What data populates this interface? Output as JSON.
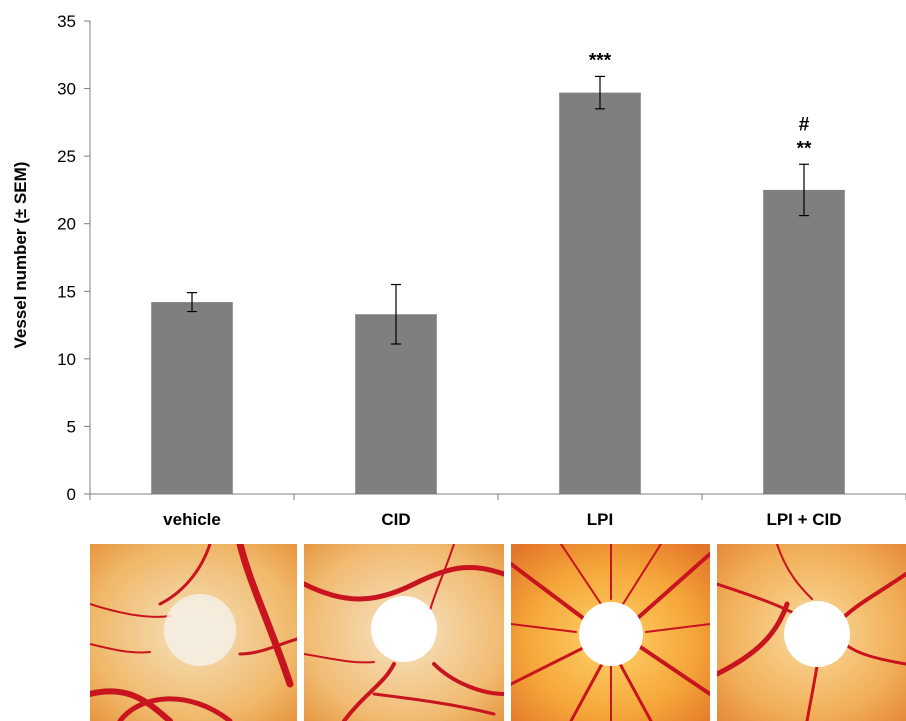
{
  "chart_data": {
    "type": "bar",
    "title": "",
    "xlabel": "",
    "ylabel": "Vessel number (± SEM)",
    "ylim": [
      0,
      35
    ],
    "yticks": [
      0,
      5,
      10,
      15,
      20,
      25,
      30,
      35
    ],
    "categories": [
      "vehicle",
      "CID",
      "LPI",
      "LPI + CID"
    ],
    "series": [
      {
        "values": [
          14.2,
          13.3,
          29.7,
          22.5
        ],
        "errors": [
          0.7,
          2.2,
          1.2,
          1.9
        ]
      }
    ],
    "annotations": [
      "",
      "",
      "***",
      "**"
    ],
    "annotations_top": [
      "",
      "",
      "",
      "#"
    ],
    "bar_color": "#7f7f7f",
    "grid": false,
    "legend": "none"
  },
  "images": [
    {
      "name": "vehicle",
      "disc_style": "translucent",
      "vessel_density": "low"
    },
    {
      "name": "CID",
      "disc_style": "opaque",
      "vessel_density": "low"
    },
    {
      "name": "LPI",
      "disc_style": "opaque",
      "vessel_density": "high"
    },
    {
      "name": "LPI + CID",
      "disc_style": "opaque",
      "vessel_density": "medium"
    }
  ],
  "colors": {
    "vessel": "#c8141e",
    "membrane": "#f2b466",
    "disc": "#ffffff"
  }
}
